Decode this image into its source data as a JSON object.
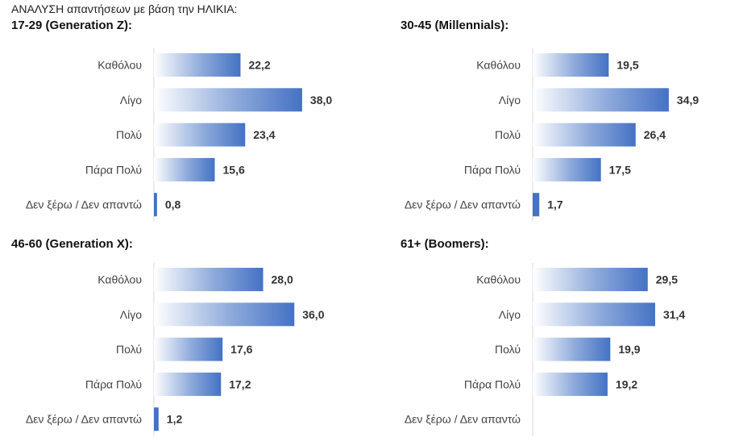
{
  "header": "ΑΝΑΛΥΣΗ απαντήσεων με βάση την ΗΛΙΚΙΑ:",
  "colors": {
    "bar_light": "#ffffff",
    "bar_dark": "#4472c4",
    "axis": "#d9d9d9"
  },
  "chart_data": [
    {
      "type": "bar",
      "orientation": "horizontal",
      "title": "17-29 (Generation Z):",
      "categories": [
        "Καθόλου",
        "Λίγο",
        "Πολύ",
        "Πάρα Πολύ",
        "Δεν ξέρω / Δεν απαντώ"
      ],
      "values": [
        22.2,
        38.0,
        23.4,
        15.6,
        0.8
      ],
      "labels": [
        "22,2",
        "38,0",
        "23,4",
        "15,6",
        "0,8"
      ],
      "xlim": [
        0,
        40
      ]
    },
    {
      "type": "bar",
      "orientation": "horizontal",
      "title": "30-45 (Millennials):",
      "categories": [
        "Καθόλου",
        "Λίγο",
        "Πολύ",
        "Πάρα Πολύ",
        "Δεν ξέρω / Δεν απαντώ"
      ],
      "values": [
        19.5,
        34.9,
        26.4,
        17.5,
        1.7
      ],
      "labels": [
        "19,5",
        "34,9",
        "26,4",
        "17,5",
        "1,7"
      ],
      "xlim": [
        0,
        40
      ]
    },
    {
      "type": "bar",
      "orientation": "horizontal",
      "title": "46-60 (Generation X):",
      "categories": [
        "Καθόλου",
        "Λίγο",
        "Πολύ",
        "Πάρα Πολύ",
        "Δεν ξέρω / Δεν απαντώ"
      ],
      "values": [
        28.0,
        36.0,
        17.6,
        17.2,
        1.2
      ],
      "labels": [
        "28,0",
        "36,0",
        "17,6",
        "17,2",
        "1,2"
      ],
      "xlim": [
        0,
        40
      ]
    },
    {
      "type": "bar",
      "orientation": "horizontal",
      "title": "61+ (Boomers):",
      "categories": [
        "Καθόλου",
        "Λίγο",
        "Πολύ",
        "Πάρα Πολύ",
        "Δεν ξέρω / Δεν απαντώ"
      ],
      "values": [
        29.5,
        31.4,
        19.9,
        19.2,
        null
      ],
      "labels": [
        "29,5",
        "31,4",
        "19,9",
        "19,2",
        ""
      ],
      "xlim": [
        0,
        40
      ]
    }
  ]
}
